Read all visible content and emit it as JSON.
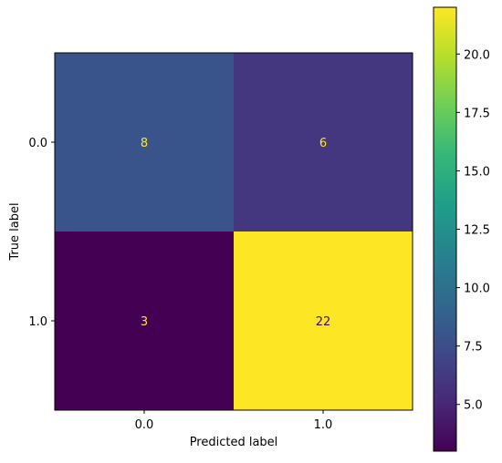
{
  "chart_data": {
    "type": "heatmap",
    "title": "",
    "xlabel": "Predicted label",
    "ylabel": "True label",
    "x_categories": [
      "0.0",
      "1.0"
    ],
    "y_categories": [
      "0.0",
      "1.0"
    ],
    "matrix": [
      [
        8,
        6
      ],
      [
        3,
        22
      ]
    ],
    "matrix_labels": [
      [
        "8",
        "6"
      ],
      [
        "3",
        "22"
      ]
    ],
    "colormap": "viridis",
    "vmin": 3,
    "vmax": 22,
    "colorbar_ticks": [
      5.0,
      7.5,
      10.0,
      12.5,
      15.0,
      17.5,
      20.0
    ],
    "colorbar_tick_labels": [
      "5.0",
      "7.5",
      "10.0",
      "12.5",
      "15.0",
      "17.5",
      "20.0"
    ],
    "cell_text_colors": {
      "on_dark": "#fde725",
      "on_light": "#440154"
    },
    "grid": false
  }
}
